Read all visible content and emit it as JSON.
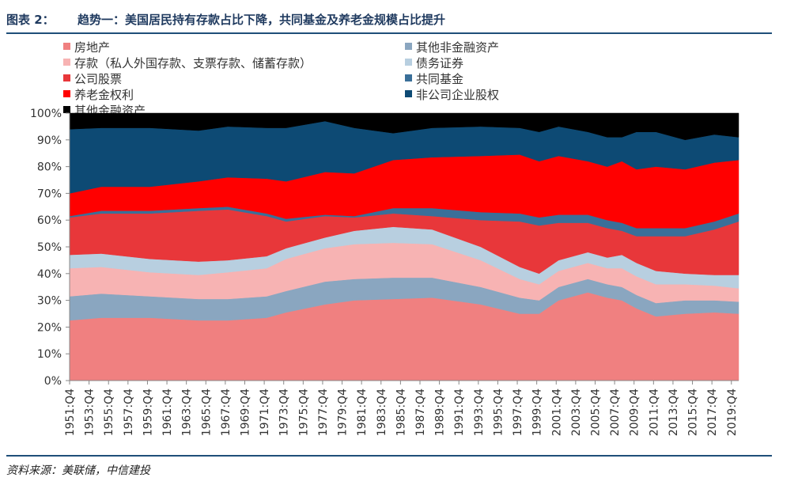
{
  "header": {
    "label": "图表 2：",
    "title": "趋势一：美国居民持有存款占比下降，共同基金及养老金规模占比提升"
  },
  "source": "资料来源：美联储，中信建投",
  "chart_data": {
    "type": "area",
    "stacked": "percent",
    "y_ticks": [
      "0%",
      "10%",
      "20%",
      "30%",
      "40%",
      "50%",
      "60%",
      "70%",
      "80%",
      "90%",
      "100%"
    ],
    "x_ticks": [
      "1951:Q4",
      "1953:Q4",
      "1955:Q4",
      "1957:Q4",
      "1959:Q4",
      "1961:Q4",
      "1963:Q4",
      "1965:Q4",
      "1967:Q4",
      "1969:Q4",
      "1971:Q4",
      "1973:Q4",
      "1975:Q4",
      "1977:Q4",
      "1979:Q4",
      "1981:Q4",
      "1983:Q4",
      "1985:Q4",
      "1987:Q4",
      "1989:Q4",
      "1991:Q4",
      "1993:Q4",
      "1995:Q4",
      "1997:Q4",
      "1999:Q4",
      "2001:Q4",
      "2003:Q4",
      "2005:Q4",
      "2007:Q4",
      "2009:Q4",
      "2011:Q4",
      "2013:Q4",
      "2015:Q4",
      "2017:Q4",
      "2019:Q4"
    ],
    "ylim": [
      0,
      100
    ],
    "legend_placement": "top",
    "x": [
      1951.75,
      1955,
      1960,
      1965,
      1968,
      1972,
      1974,
      1978,
      1981,
      1985,
      1989,
      1994,
      1998,
      2000,
      2002,
      2005,
      2007,
      2008.5,
      2010,
      2012,
      2015,
      2018,
      2020.5
    ],
    "series": [
      {
        "name": "房地产",
        "color": "#f08080",
        "values": [
          22.5,
          23.5,
          23.5,
          22.5,
          22.5,
          23.5,
          25.5,
          28.5,
          30,
          30.5,
          31,
          28.5,
          25,
          25,
          30,
          33,
          31,
          30,
          27,
          24,
          25,
          25.5,
          25
        ]
      },
      {
        "name": "其他非金融资产",
        "color": "#8aa6c0",
        "values": [
          9,
          9,
          8,
          8,
          8,
          8,
          8,
          8.5,
          8,
          8,
          7.5,
          6.5,
          6,
          5,
          5,
          5,
          5,
          5,
          5,
          5,
          5,
          4.5,
          4.5
        ]
      },
      {
        "name": "存款（私人外国存款、支票存款、储蓄存款）",
        "color": "#f7b3b3",
        "values": [
          10.5,
          10,
          9,
          9,
          10,
          10.5,
          12,
          12.5,
          13,
          13,
          12.5,
          10,
          7,
          6,
          6,
          6,
          6,
          7,
          7,
          7,
          6,
          5.5,
          5
        ]
      },
      {
        "name": "债务证券",
        "color": "#b8cfe0",
        "values": [
          5,
          5,
          5,
          5,
          4.5,
          4.5,
          4,
          4,
          5,
          6,
          5.5,
          5,
          4.5,
          4,
          4,
          4,
          4,
          5,
          5,
          5,
          4,
          4,
          5
        ]
      },
      {
        "name": "公司股票",
        "color": "#e8373a",
        "values": [
          14,
          15,
          17,
          19,
          19,
          15,
          10,
          8,
          5,
          5,
          5,
          10,
          17,
          18,
          14,
          11,
          11,
          9,
          10,
          13,
          14,
          17,
          20
        ]
      },
      {
        "name": "共同基金",
        "color": "#3a6f99",
        "values": [
          0.5,
          1,
          1,
          1,
          1,
          1,
          1,
          0.5,
          0.5,
          2,
          3,
          3,
          3,
          3,
          3,
          3,
          3,
          3,
          3,
          3,
          3,
          3,
          3
        ]
      },
      {
        "name": "养老金权利",
        "color": "#ff0000",
        "values": [
          8.5,
          9,
          9,
          10,
          11,
          13,
          14,
          16,
          16,
          18,
          19,
          21,
          22,
          21,
          22,
          20,
          20,
          23,
          22,
          23,
          22,
          22,
          20
        ]
      },
      {
        "name": "非公司企业股权",
        "color": "#0d4a74",
        "values": [
          24,
          22,
          22,
          19,
          19,
          19,
          20,
          19,
          17,
          10,
          11,
          11,
          10,
          11,
          11,
          11,
          11,
          9,
          14,
          13,
          11,
          10.5,
          8.5
        ]
      },
      {
        "name": "其他金融资产",
        "color": "#000000",
        "values": [
          6,
          5.5,
          5.5,
          6.5,
          5,
          5.5,
          5.5,
          3,
          5.5,
          7.5,
          5.5,
          5,
          5.5,
          7,
          5,
          7,
          9,
          9,
          7,
          7,
          10,
          8,
          9
        ]
      }
    ]
  }
}
